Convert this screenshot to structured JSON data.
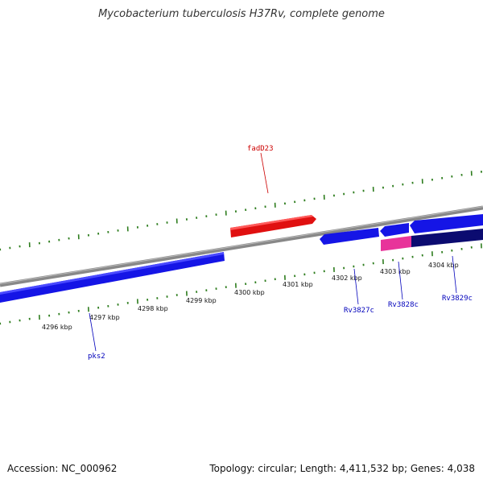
{
  "title": "Mycobacterium tuberculosis H37Rv, complete genome",
  "footer": {
    "accession": "Accession: NC_000962",
    "summary": "Topology: circular; Length: 4,411,532 bp; Genes: 4,038"
  },
  "colors": {
    "backbone": "#888888",
    "tick": "#2e7d1e",
    "forward_gene": "#e01010",
    "reverse_gene": "#1515e6",
    "reverse_gene_dark": "#0b0b70",
    "pink_segment": "#e8349a",
    "forward_label": "#cc0000",
    "reverse_label": "#0000bb"
  },
  "kbp_labels": [
    {
      "label": "4296 kbp"
    },
    {
      "label": "4297 kbp"
    },
    {
      "label": "4298 kbp"
    },
    {
      "label": "4299 kbp"
    },
    {
      "label": "4300 kbp"
    },
    {
      "label": "4301 kbp"
    },
    {
      "label": "4302 kbp"
    },
    {
      "label": "4303 kbp"
    },
    {
      "label": "4304 kbp"
    }
  ],
  "genes": [
    {
      "name": "fadD23",
      "strand": "forward"
    },
    {
      "name": "pks2",
      "strand": "reverse"
    },
    {
      "name": "Rv3827c",
      "strand": "reverse"
    },
    {
      "name": "Rv3828c",
      "strand": "reverse"
    },
    {
      "name": "Rv3829c",
      "strand": "reverse"
    }
  ]
}
